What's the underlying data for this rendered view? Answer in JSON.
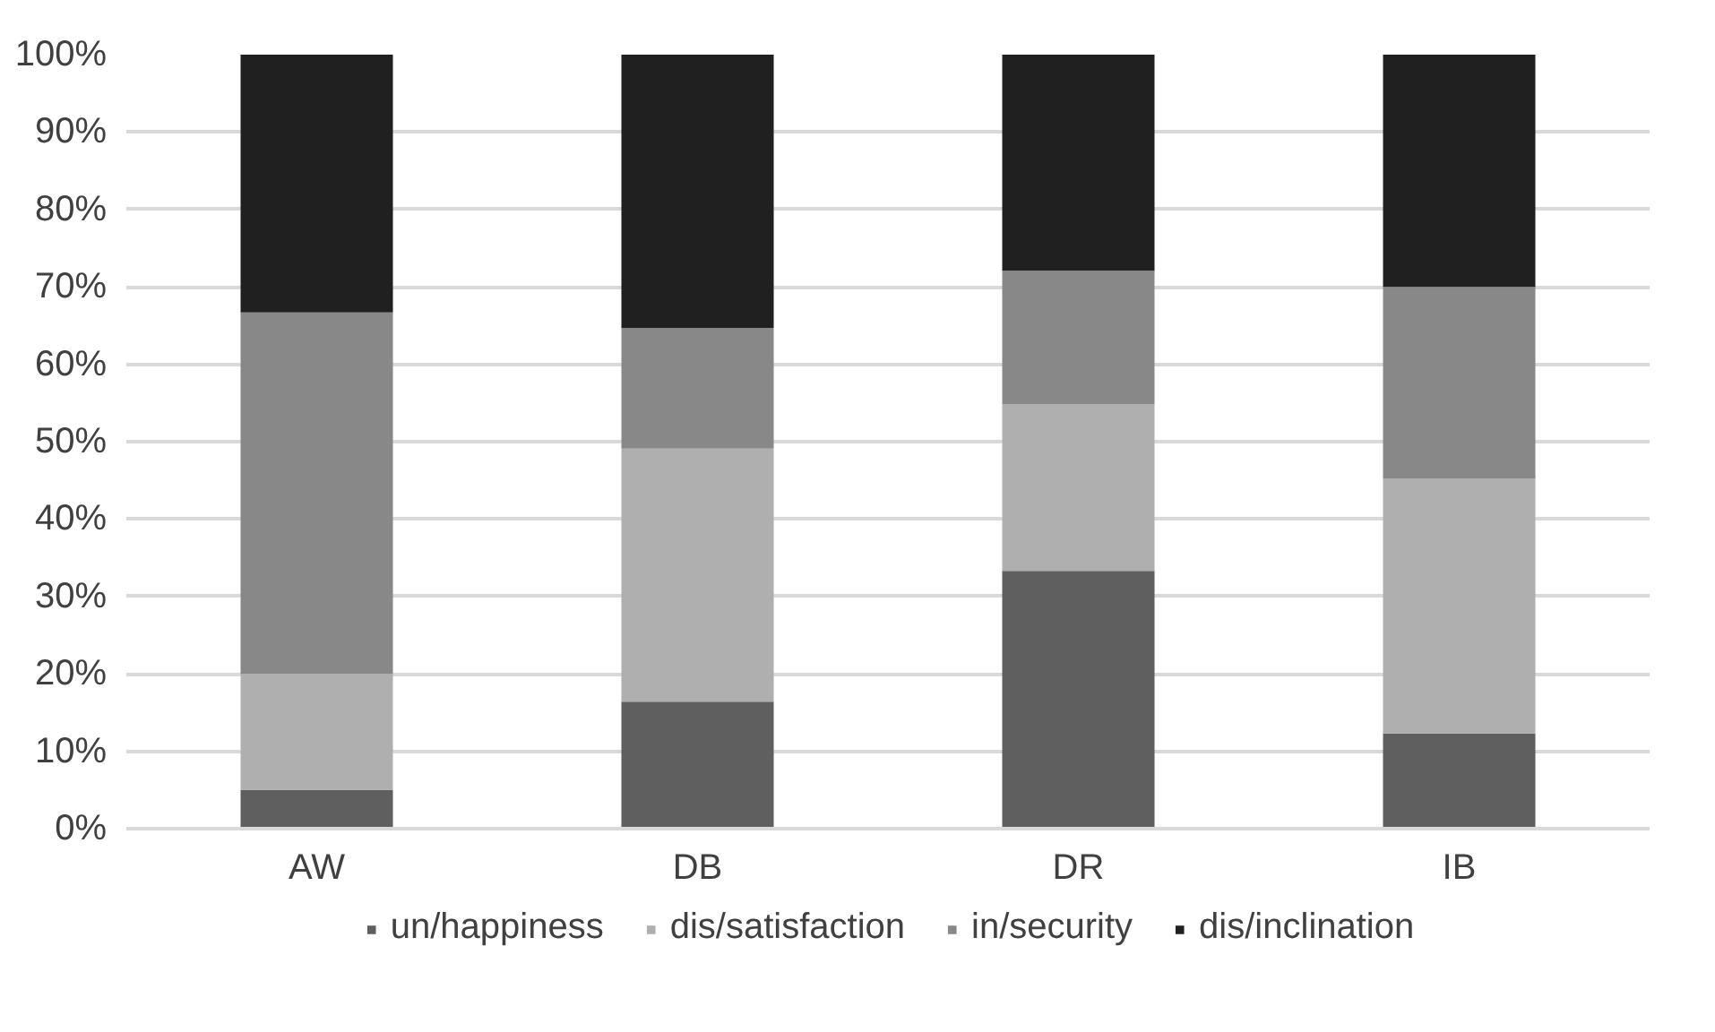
{
  "chart_data": {
    "type": "bar",
    "stacked": true,
    "categories": [
      "AW",
      "DB",
      "DR",
      "IB"
    ],
    "series": [
      {
        "name": "un/happiness",
        "color": "#5f5f5f",
        "values": [
          5,
          16.4,
          33.3,
          12.3
        ]
      },
      {
        "name": "dis/satisfaction",
        "color": "#afafaf",
        "values": [
          15,
          32.7,
          21.5,
          32.9
        ]
      },
      {
        "name": "in/security",
        "color": "#888888",
        "values": [
          46.7,
          15.6,
          17.3,
          24.8
        ]
      },
      {
        "name": "dis/inclination",
        "color": "#202020",
        "values": [
          33.3,
          35.3,
          27.9,
          30.0
        ]
      }
    ],
    "ylim": [
      0,
      100
    ],
    "yticks": [
      {
        "value": 0,
        "label": "0%"
      },
      {
        "value": 10,
        "label": "10%"
      },
      {
        "value": 20,
        "label": "20%"
      },
      {
        "value": 30,
        "label": "30%"
      },
      {
        "value": 40,
        "label": "40%"
      },
      {
        "value": 50,
        "label": "50%"
      },
      {
        "value": 60,
        "label": "60%"
      },
      {
        "value": 70,
        "label": "70%"
      },
      {
        "value": 80,
        "label": "80%"
      },
      {
        "value": 90,
        "label": "90%"
      },
      {
        "value": 100,
        "label": "100%"
      }
    ],
    "grid": "y",
    "legend": "bottom"
  }
}
